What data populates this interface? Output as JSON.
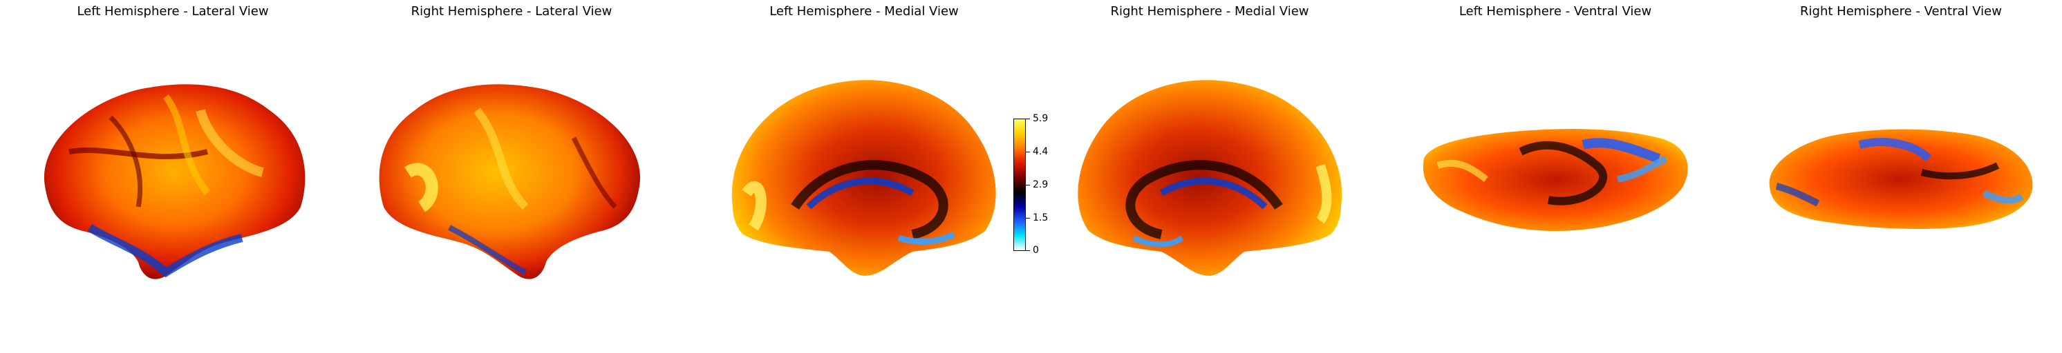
{
  "panels": [
    {
      "title": "Left Hemisphere - Lateral View"
    },
    {
      "title": "Right Hemisphere - Lateral View"
    },
    {
      "title": "Left Hemisphere - Medial View"
    },
    {
      "title": "Right Hemisphere - Medial View"
    },
    {
      "title": "Left Hemisphere - Ventral View"
    },
    {
      "title": "Right Hemisphere - Ventral View"
    }
  ],
  "colorbar": {
    "min": 0,
    "max": 5.9,
    "ticks": [
      "5.9",
      "4.4",
      "2.9",
      "1.5",
      "0"
    ],
    "colormap": [
      "#ffffff",
      "#00e5ff",
      "#1e5cff",
      "#0000a0",
      "#000000",
      "#7a0000",
      "#e01a00",
      "#ff7a00",
      "#ffd000",
      "#ffff60"
    ]
  }
}
